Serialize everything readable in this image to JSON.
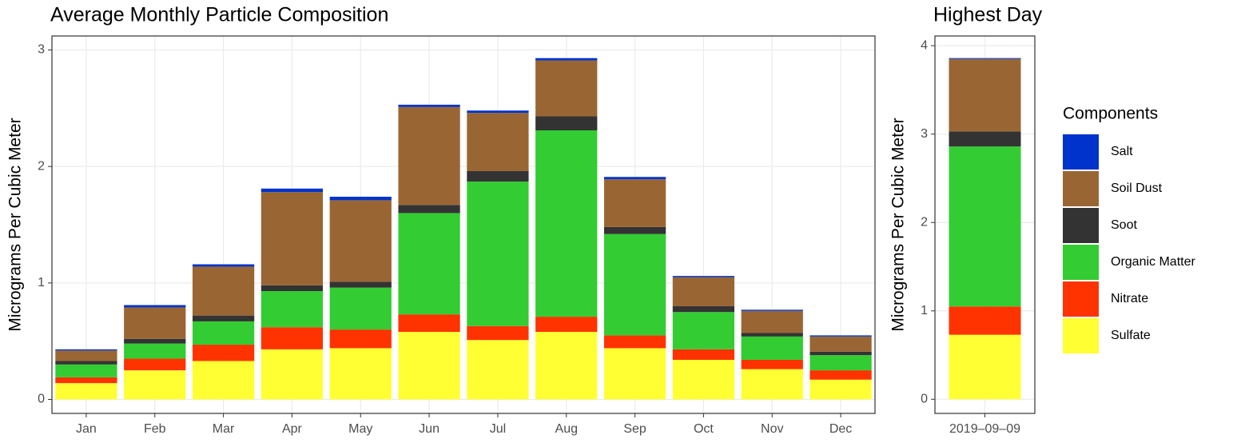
{
  "chart_data": [
    {
      "type": "bar",
      "stacked": true,
      "title": "Average Monthly Particle Composition",
      "ylabel": "Micrograms Per Cubic Meter",
      "categories": [
        "Jan",
        "Feb",
        "Mar",
        "Apr",
        "May",
        "Jun",
        "Jul",
        "Aug",
        "Sep",
        "Oct",
        "Nov",
        "Dec"
      ],
      "ylim": [
        -0.12,
        3.12
      ],
      "yticks": [
        0,
        1,
        2,
        3
      ],
      "grid": true,
      "series": [
        {
          "color": "#ffff33",
          "values": [
            0.14,
            0.25,
            0.33,
            0.43,
            0.44,
            0.58,
            0.51,
            0.58,
            0.44,
            0.34,
            0.26,
            0.17
          ]
        },
        {
          "color": "#ff3300",
          "values": [
            0.05,
            0.1,
            0.14,
            0.19,
            0.16,
            0.15,
            0.12,
            0.13,
            0.11,
            0.09,
            0.08,
            0.08
          ]
        },
        {
          "color": "#33cc33",
          "values": [
            0.11,
            0.13,
            0.2,
            0.31,
            0.36,
            0.87,
            1.24,
            1.6,
            0.87,
            0.32,
            0.2,
            0.13
          ]
        },
        {
          "color": "#333333",
          "values": [
            0.03,
            0.04,
            0.05,
            0.05,
            0.05,
            0.07,
            0.09,
            0.12,
            0.06,
            0.05,
            0.03,
            0.03
          ]
        },
        {
          "color": "#996633",
          "values": [
            0.09,
            0.27,
            0.42,
            0.8,
            0.7,
            0.84,
            0.5,
            0.48,
            0.41,
            0.25,
            0.19,
            0.13
          ]
        },
        {
          "color": "#0033cc",
          "values": [
            0.01,
            0.02,
            0.02,
            0.03,
            0.03,
            0.02,
            0.02,
            0.02,
            0.02,
            0.01,
            0.01,
            0.01
          ]
        }
      ]
    },
    {
      "type": "bar",
      "stacked": true,
      "title": "Highest Day",
      "ylabel": "Micrograms Per Cubic Meter",
      "categories": [
        "2019–09–09"
      ],
      "ylim": [
        -0.16,
        4.11
      ],
      "yticks": [
        0,
        1,
        2,
        3,
        4
      ],
      "grid": true,
      "legend_title": "Components",
      "legend": "right",
      "series": [
        {
          "name": "Sulfate",
          "color": "#ffff33",
          "values": [
            0.73
          ]
        },
        {
          "name": "Nitrate",
          "color": "#ff3300",
          "values": [
            0.32
          ]
        },
        {
          "name": "Organic Matter",
          "color": "#33cc33",
          "values": [
            1.81
          ]
        },
        {
          "name": "Soot",
          "color": "#333333",
          "values": [
            0.17
          ]
        },
        {
          "name": "Soil Dust",
          "color": "#996633",
          "values": [
            0.82
          ]
        },
        {
          "name": "Salt",
          "color": "#0033cc",
          "values": [
            0.01
          ]
        }
      ]
    }
  ]
}
